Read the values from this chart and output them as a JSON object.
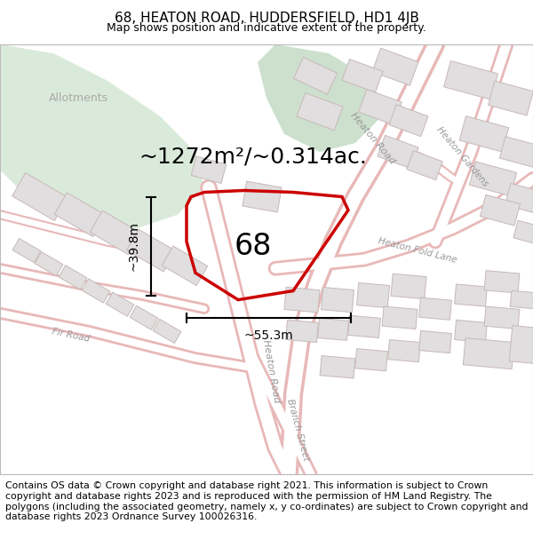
{
  "title_line1": "68, HEATON ROAD, HUDDERSFIELD, HD1 4JB",
  "title_line2": "Map shows position and indicative extent of the property.",
  "area_label": "~1272m²/~0.314ac.",
  "property_number": "68",
  "width_label": "~55.3m",
  "height_label": "~39.8m",
  "footer_text": "Contains OS data © Crown copyright and database right 2021. This information is subject to Crown copyright and database rights 2023 and is reproduced with the permission of HM Land Registry. The polygons (including the associated geometry, namely x, y co-ordinates) are subject to Crown copyright and database rights 2023 Ordnance Survey 100026316.",
  "bg_color": "#ffffff",
  "map_bg": "#f4f4f4",
  "property_edge": "#cc0000",
  "green_color": "#daeada",
  "green2_color": "#cde0cd",
  "road_outline": "#e8b8b8",
  "road_fill": "#f8f0f0",
  "building_fill": "#e0dede",
  "building_edge": "#c8b8b8",
  "road_label_color": "#999999",
  "allotments_label_color": "#aaaaaa",
  "title_fontsize": 11,
  "subtitle_fontsize": 9,
  "footer_fontsize": 7.8,
  "area_fontsize": 18,
  "measurement_fontsize": 10,
  "property_label_fontsize": 24,
  "road_label_fontsize": 8
}
